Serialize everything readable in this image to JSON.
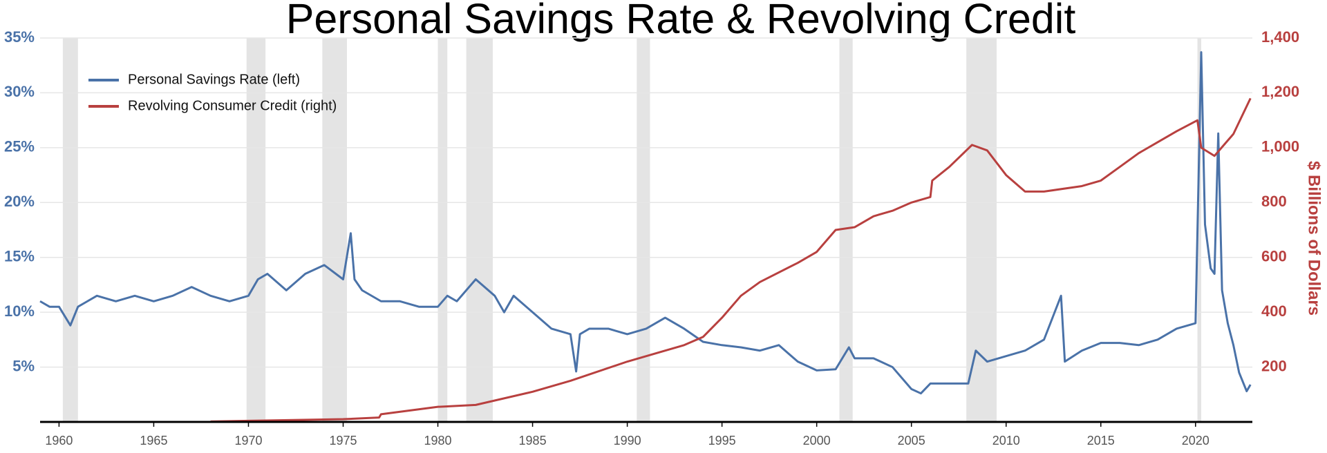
{
  "chart_data": {
    "type": "line",
    "title": "Personal Savings Rate & Revolving Credit",
    "y2label": "$ Billions of Dollars",
    "grid": true,
    "legend": "upper left",
    "xlim": [
      1959,
      2023
    ],
    "xticks": [
      1960,
      1965,
      1970,
      1975,
      1980,
      1985,
      1990,
      1995,
      2000,
      2005,
      2010,
      2015,
      2020
    ],
    "ylim": [
      0,
      35
    ],
    "yticks": [
      {
        "value": 5,
        "label": "5%"
      },
      {
        "value": 10,
        "label": "10%"
      },
      {
        "value": 15,
        "label": "15%"
      },
      {
        "value": 20,
        "label": "20%"
      },
      {
        "value": 25,
        "label": "25%"
      },
      {
        "value": 30,
        "label": "30%"
      },
      {
        "value": 35,
        "label": "35%"
      }
    ],
    "y2lim": [
      0,
      1400
    ],
    "y2ticks": [
      200,
      400,
      600,
      800,
      {
        "value": 1000,
        "label": "1,000"
      },
      {
        "value": 1200,
        "label": "1,200"
      },
      {
        "value": 1400,
        "label": "1,400"
      }
    ],
    "recessions": [
      [
        1960.2,
        1961.0
      ],
      [
        1969.9,
        1970.9
      ],
      [
        1973.9,
        1975.2
      ],
      [
        1980.0,
        1980.5
      ],
      [
        1981.5,
        1982.9
      ],
      [
        1990.5,
        1991.2
      ],
      [
        2001.2,
        2001.9
      ],
      [
        2007.9,
        2009.5
      ],
      [
        2020.1,
        2020.3
      ]
    ],
    "recession_color": "#e4e4e4",
    "series": [
      {
        "name": "Personal Savings Rate (left)",
        "color": "#4a72a8",
        "axis": "y",
        "x": [
          1959,
          1959.5,
          1960,
          1960.6,
          1961,
          1961.5,
          1962,
          1963,
          1964,
          1965,
          1966,
          1967,
          1968,
          1969,
          1970,
          1970.5,
          1971,
          1972,
          1973,
          1974,
          1975,
          1975.4,
          1975.6,
          1976,
          1977,
          1978,
          1979,
          1980,
          1980.5,
          1981,
          1982,
          1983,
          1983.5,
          1984,
          1985,
          1986,
          1987,
          1987.3,
          1987.5,
          1988,
          1989,
          1990,
          1991,
          1992,
          1993,
          1994,
          1995,
          1996,
          1997,
          1998,
          1999,
          2000,
          2001,
          2001.7,
          2002,
          2003,
          2004,
          2005,
          2005.5,
          2006,
          2007,
          2008,
          2008.4,
          2009,
          2010,
          2011,
          2012,
          2012.9,
          2013.1,
          2014,
          2015,
          2016,
          2017,
          2018,
          2019,
          2020.0,
          2020.3,
          2020.5,
          2020.8,
          2021.0,
          2021.2,
          2021.4,
          2021.7,
          2022,
          2022.3,
          2022.7,
          2022.9
        ],
        "values": [
          11,
          10.5,
          10.5,
          8.8,
          10.5,
          11,
          11.5,
          11,
          11.5,
          11,
          11.5,
          12.3,
          11.5,
          11,
          11.5,
          13,
          13.5,
          12,
          13.5,
          14.3,
          13,
          17.2,
          13,
          12,
          11,
          11,
          10.5,
          10.5,
          11.5,
          11,
          13,
          11.5,
          10,
          11.5,
          10,
          8.5,
          8,
          4.6,
          8,
          8.5,
          8.5,
          8,
          8.5,
          9.5,
          8.5,
          7.3,
          7,
          6.8,
          6.5,
          7,
          5.5,
          4.7,
          4.8,
          6.8,
          5.8,
          5.8,
          5,
          3,
          2.6,
          3.5,
          3.5,
          3.5,
          6.5,
          5.5,
          6,
          6.5,
          7.5,
          11.5,
          5.5,
          6.5,
          7.2,
          7.2,
          7,
          7.5,
          8.5,
          9,
          33.7,
          18,
          14,
          13.5,
          26.3,
          12,
          9,
          7,
          4.5,
          2.8,
          3.4
        ]
      },
      {
        "name": "Revolving Consumer Credit (right)",
        "color": "#b8403f",
        "axis": "y2",
        "x": [
          1968,
          1970,
          1975,
          1976.9,
          1977,
          1980,
          1982,
          1985,
          1987,
          1990,
          1993,
          1994,
          1995,
          1996,
          1997,
          1999,
          2000,
          2001,
          2002,
          2003,
          2004,
          2005,
          2006,
          2006.1,
          2007,
          2008.2,
          2009,
          2010,
          2011,
          2012,
          2014,
          2015,
          2016,
          2017,
          2018,
          2019,
          2020.1,
          2020.3,
          2021,
          2022,
          2022.9
        ],
        "values": [
          1.5,
          4,
          10,
          16,
          28,
          55,
          62,
          110,
          150,
          220,
          280,
          310,
          380,
          460,
          510,
          580,
          620,
          700,
          710,
          750,
          770,
          800,
          820,
          880,
          930,
          1010,
          990,
          900,
          840,
          840,
          860,
          880,
          930,
          980,
          1020,
          1060,
          1100,
          1000,
          970,
          1050,
          1180
        ]
      }
    ]
  }
}
